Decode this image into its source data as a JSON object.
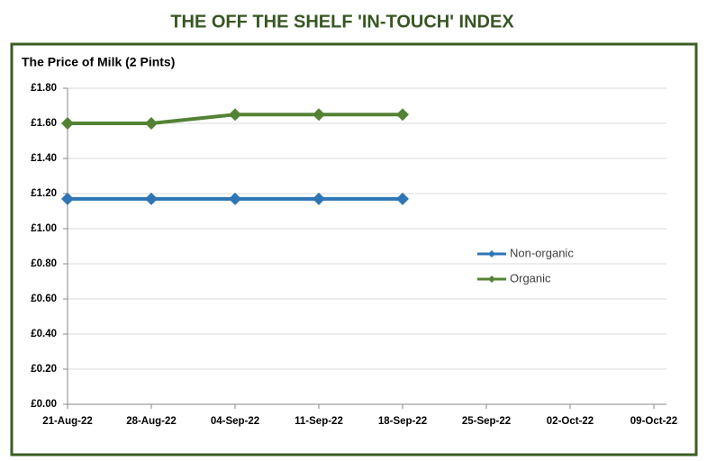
{
  "page_title": "THE OFF THE SHELF 'IN-TOUCH' INDEX",
  "chart_data": {
    "type": "line",
    "title": "The Price of Milk (2 Pints)",
    "categories": [
      "21-Aug-22",
      "28-Aug-22",
      "04-Sep-22",
      "11-Sep-22",
      "18-Sep-22",
      "25-Sep-22",
      "02-Oct-22",
      "09-Oct-22"
    ],
    "series": [
      {
        "name": "Non-organic",
        "color": "#2e75b6",
        "values": [
          1.17,
          1.17,
          1.17,
          1.17,
          1.17,
          null,
          null,
          null
        ]
      },
      {
        "name": "Organic",
        "color": "#548235",
        "values": [
          1.6,
          1.6,
          1.65,
          1.65,
          1.65,
          null,
          null,
          null
        ]
      }
    ],
    "ylim": [
      0,
      1.8
    ],
    "yticks": [
      {
        "value": 0,
        "label": "£0.00"
      },
      {
        "value": 0.2,
        "label": "£0.20"
      },
      {
        "value": 0.4,
        "label": "£0.40"
      },
      {
        "value": 0.6,
        "label": "£0.60"
      },
      {
        "value": 0.8,
        "label": "£0.80"
      },
      {
        "value": 1.0,
        "label": "£1.00"
      },
      {
        "value": 1.2,
        "label": "£1.20"
      },
      {
        "value": 1.4,
        "label": "£1.40"
      },
      {
        "value": 1.6,
        "label": "£1.60"
      },
      {
        "value": 1.8,
        "label": "£1.80"
      }
    ],
    "grid": true,
    "legend": "right"
  }
}
